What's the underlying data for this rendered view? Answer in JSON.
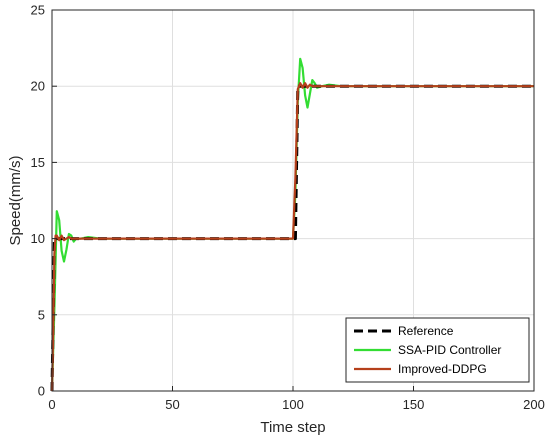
{
  "chart_data": {
    "type": "line",
    "xlabel": "Time step",
    "ylabel": "Speed(mm/s)",
    "xlim": [
      0,
      200
    ],
    "ylim": [
      0,
      25
    ],
    "xticks": [
      0,
      50,
      100,
      150,
      200
    ],
    "yticks": [
      0,
      5,
      10,
      15,
      20,
      25
    ],
    "grid": true,
    "legend_position": "bottom-right",
    "series": [
      {
        "name": "Reference",
        "color": "#000000",
        "style": "dashed",
        "x": [
          0,
          1,
          101,
          102,
          200
        ],
        "y": [
          0,
          10,
          10,
          20,
          20
        ]
      },
      {
        "name": "SSA-PID Controller",
        "color": "#33dd33",
        "style": "solid",
        "x": [
          0,
          1,
          2,
          3,
          4,
          5,
          6,
          7,
          8,
          9,
          10,
          12,
          15,
          20,
          100,
          101,
          102,
          103,
          104,
          105,
          106,
          107,
          108,
          109,
          110,
          112,
          115,
          120,
          200
        ],
        "y": [
          0,
          5.5,
          11.8,
          11.2,
          9.2,
          8.5,
          9.3,
          10.3,
          10.2,
          9.8,
          10.0,
          10.0,
          10.1,
          10.0,
          10.0,
          13.0,
          19.0,
          21.8,
          21.2,
          19.4,
          18.6,
          19.5,
          20.4,
          20.2,
          19.9,
          20.0,
          20.1,
          20.0,
          20.0
        ]
      },
      {
        "name": "Improved-DDPG",
        "color": "#b5401b",
        "style": "solid",
        "x": [
          0,
          0.5,
          1,
          1.5,
          2,
          3,
          4,
          5,
          6,
          7,
          8,
          9,
          10,
          12,
          15,
          20,
          100,
          101,
          102,
          103,
          104,
          105,
          106,
          107,
          108,
          110,
          112,
          115,
          120,
          200
        ],
        "y": [
          0,
          4,
          9,
          10.2,
          10.2,
          9.9,
          10.2,
          9.9,
          10.0,
          10.1,
          10.0,
          10.0,
          10.0,
          10.0,
          10.0,
          10.0,
          10.0,
          14.0,
          19.8,
          20.2,
          19.9,
          20.2,
          19.9,
          20.1,
          20.0,
          20.0,
          20.0,
          20.0,
          20.0,
          20.0
        ]
      }
    ]
  }
}
